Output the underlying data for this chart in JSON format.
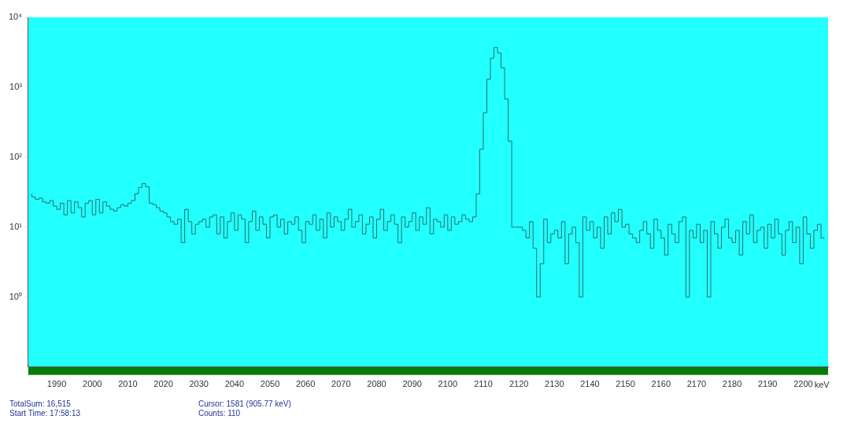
{
  "chart_data": {
    "type": "step",
    "xlabel": "keV",
    "x": [
      1983,
      1984,
      1985,
      1986,
      1987,
      1988,
      1989,
      1990,
      1991,
      1992,
      1993,
      1994,
      1995,
      1996,
      1997,
      1998,
      1999,
      2000,
      2001,
      2002,
      2003,
      2004,
      2005,
      2006,
      2007,
      2008,
      2009,
      2010,
      2011,
      2012,
      2013,
      2014,
      2015,
      2016,
      2017,
      2018,
      2019,
      2020,
      2021,
      2022,
      2023,
      2024,
      2025,
      2026,
      2027,
      2028,
      2029,
      2030,
      2031,
      2032,
      2033,
      2034,
      2035,
      2036,
      2037,
      2038,
      2039,
      2040,
      2041,
      2042,
      2043,
      2044,
      2045,
      2046,
      2047,
      2048,
      2049,
      2050,
      2051,
      2052,
      2053,
      2054,
      2055,
      2056,
      2057,
      2058,
      2059,
      2060,
      2061,
      2062,
      2063,
      2064,
      2065,
      2066,
      2067,
      2068,
      2069,
      2070,
      2071,
      2072,
      2073,
      2074,
      2075,
      2076,
      2077,
      2078,
      2079,
      2080,
      2081,
      2082,
      2083,
      2084,
      2085,
      2086,
      2087,
      2088,
      2089,
      2090,
      2091,
      2092,
      2093,
      2094,
      2095,
      2096,
      2097,
      2098,
      2099,
      2100,
      2101,
      2102,
      2103,
      2104,
      2105,
      2106,
      2107,
      2108,
      2109,
      2110,
      2111,
      2112,
      2113,
      2114,
      2115,
      2116,
      2117,
      2118,
      2119,
      2120,
      2121,
      2122,
      2123,
      2124,
      2125,
      2126,
      2127,
      2128,
      2129,
      2130,
      2131,
      2132,
      2133,
      2134,
      2135,
      2136,
      2137,
      2138,
      2139,
      2140,
      2141,
      2142,
      2143,
      2144,
      2145,
      2146,
      2147,
      2148,
      2149,
      2150,
      2151,
      2152,
      2153,
      2154,
      2155,
      2156,
      2157,
      2158,
      2159,
      2160,
      2161,
      2162,
      2163,
      2164,
      2165,
      2166,
      2167,
      2168,
      2169,
      2170,
      2171,
      2172,
      2173,
      2174,
      2175,
      2176,
      2177,
      2178,
      2179,
      2180,
      2181,
      2182,
      2183,
      2184,
      2185,
      2186,
      2187,
      2188,
      2189,
      2190,
      2191,
      2192,
      2193,
      2194,
      2195,
      2196,
      2197,
      2198,
      2199,
      2200,
      2201,
      2202,
      2203,
      2204,
      2205,
      2206
    ],
    "values": [
      30,
      27,
      25,
      26,
      23,
      22,
      24,
      20,
      18,
      22,
      15,
      24,
      16,
      23,
      19,
      14,
      22,
      24,
      15,
      25,
      16,
      23,
      20,
      18,
      17,
      19,
      21,
      20,
      22,
      24,
      30,
      37,
      42,
      38,
      22,
      21,
      19,
      17,
      16,
      14,
      12,
      11,
      13,
      6,
      18,
      12,
      8,
      11,
      12,
      13,
      10,
      14,
      15,
      8,
      14,
      7,
      12,
      16,
      9,
      15,
      13,
      6,
      12,
      17,
      9,
      14,
      11,
      7,
      14,
      15,
      10,
      13,
      8,
      12,
      11,
      14,
      9,
      6,
      12,
      11,
      15,
      9,
      13,
      7,
      16,
      10,
      14,
      12,
      9,
      13,
      18,
      10,
      12,
      15,
      8,
      11,
      14,
      7,
      13,
      18,
      9,
      12,
      15,
      11,
      6,
      14,
      10,
      12,
      16,
      9,
      14,
      11,
      19,
      8,
      13,
      12,
      10,
      15,
      9,
      14,
      11,
      12,
      15,
      13,
      12,
      14,
      30,
      130,
      430,
      1300,
      2600,
      3700,
      3100,
      1900,
      680,
      170,
      10,
      10,
      10,
      9,
      7,
      12,
      5,
      1,
      3,
      13,
      6,
      8,
      9,
      7,
      12,
      3,
      8,
      10,
      6,
      1,
      14,
      9,
      12,
      7,
      10,
      5,
      14,
      8,
      16,
      12,
      18,
      10,
      11,
      8,
      7,
      6,
      9,
      12,
      8,
      5,
      13,
      9,
      7,
      4,
      11,
      8,
      6,
      12,
      14,
      1,
      9,
      7,
      11,
      6,
      9,
      1,
      12,
      8,
      5,
      10,
      13,
      7,
      6,
      9,
      4,
      12,
      8,
      15,
      6,
      9,
      10,
      5,
      11,
      7,
      13,
      8,
      4,
      9,
      12,
      6,
      10,
      3,
      14,
      8,
      5,
      9,
      11,
      7
    ],
    "color": "#2a6e6e",
    "log": true,
    "grid": false,
    "legend": false,
    "xlim": [
      1982,
      2207
    ],
    "xticks": [
      1990,
      2000,
      2010,
      2020,
      2030,
      2040,
      2050,
      2060,
      2070,
      2080,
      2090,
      2100,
      2110,
      2120,
      2130,
      2140,
      2150,
      2160,
      2170,
      2180,
      2190,
      2200
    ],
    "ylim": [
      0.1,
      10000
    ],
    "yticks": [
      {
        "value": 1,
        "label": "10⁰"
      },
      {
        "value": 10,
        "label": "10¹"
      },
      {
        "value": 100,
        "label": "10²"
      },
      {
        "value": 1000,
        "label": "10³"
      },
      {
        "value": 10000,
        "label": "10⁴"
      }
    ],
    "annotations": [
      "TotalSum: 16,515",
      "Start Time: 17:58:13",
      "Cursor: 1581 (905.77 keV)",
      "Counts: 110"
    ]
  }
}
